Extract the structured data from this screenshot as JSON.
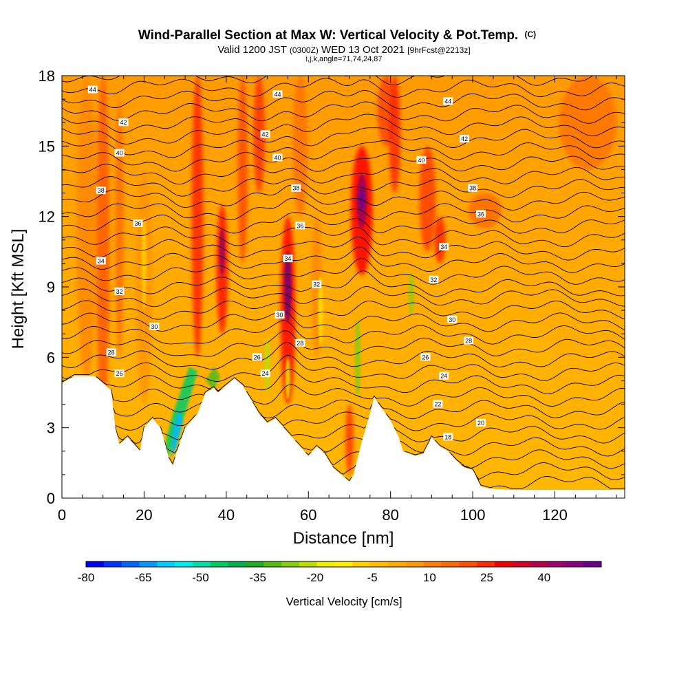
{
  "chart_data": {
    "type": "heatmap",
    "title": "Wind-Parallel Section at Max W: Vertical Velocity & Pot.Temp.",
    "title_mark": "(C)",
    "subtitle_parts": [
      "Valid 1200 JST",
      "(0300Z)",
      "WED 13 Oct 2021",
      "[9hrFcst@2213z]"
    ],
    "subtitle2": "i,j,k,angle=71,74,24,87",
    "xlabel": "Distance [nm]",
    "ylabel": "Height [Kft MSL]",
    "xlim": [
      0,
      137
    ],
    "ylim": [
      0,
      18
    ],
    "xticks": [
      0,
      20,
      40,
      60,
      80,
      100,
      120
    ],
    "xtick_labels": [
      "0",
      "20",
      "40",
      "60",
      "80",
      "100",
      "120"
    ],
    "yticks": [
      0,
      3,
      6,
      9,
      12,
      15,
      18
    ],
    "ytick_labels": [
      "0",
      "3",
      "6",
      "9",
      "12",
      "15",
      "18"
    ],
    "colorbar": {
      "label": "Vertical Velocity [cm/s]",
      "tick_labels": [
        "-80",
        "-65",
        "-50",
        "-35",
        "-20",
        "-5",
        "10",
        "25",
        "40"
      ],
      "tick_values": [
        -80,
        -65,
        -50,
        -35,
        -20,
        -5,
        10,
        25,
        40
      ],
      "colors": [
        "#0000ee",
        "#0033ff",
        "#0066ff",
        "#0099ff",
        "#00ccff",
        "#00eeee",
        "#00ddaa",
        "#00cc66",
        "#00b050",
        "#22aa22",
        "#55bb11",
        "#88cc11",
        "#bbdd00",
        "#eeee00",
        "#ffee00",
        "#ffd000",
        "#ffbb00",
        "#ffaa00",
        "#ff9900",
        "#ff8000",
        "#ff6a00",
        "#ff5000",
        "#ff2a00",
        "#ee0000",
        "#d4002a",
        "#b80050",
        "#a00070",
        "#880080",
        "#66008a"
      ]
    },
    "terrain": [
      [
        0,
        4.9
      ],
      [
        3,
        5.2
      ],
      [
        8,
        5.2
      ],
      [
        10,
        4.9
      ],
      [
        12,
        4.6
      ],
      [
        13,
        3.0
      ],
      [
        14,
        2.3
      ],
      [
        16,
        2.6
      ],
      [
        18,
        2.2
      ],
      [
        19,
        2.0
      ],
      [
        20,
        3.0
      ],
      [
        22,
        3.4
      ],
      [
        24,
        3.0
      ],
      [
        25,
        2.4
      ],
      [
        26,
        1.7
      ],
      [
        27,
        1.4
      ],
      [
        28,
        2.0
      ],
      [
        30,
        3.0
      ],
      [
        33,
        3.6
      ],
      [
        35,
        4.5
      ],
      [
        37,
        4.7
      ],
      [
        38,
        4.5
      ],
      [
        40,
        4.8
      ],
      [
        42,
        5.1
      ],
      [
        44,
        4.8
      ],
      [
        46,
        4.2
      ],
      [
        48,
        3.6
      ],
      [
        50,
        3.2
      ],
      [
        52,
        3.4
      ],
      [
        54,
        3.0
      ],
      [
        56,
        2.6
      ],
      [
        58,
        2.2
      ],
      [
        60,
        1.8
      ],
      [
        62,
        2.2
      ],
      [
        64,
        1.9
      ],
      [
        66,
        1.3
      ],
      [
        68,
        1.0
      ],
      [
        70,
        0.7
      ],
      [
        71,
        1.0
      ],
      [
        73,
        2.4
      ],
      [
        75,
        3.6
      ],
      [
        76,
        4.3
      ],
      [
        78,
        3.8
      ],
      [
        80,
        3.3
      ],
      [
        82,
        2.6
      ],
      [
        83,
        2.0
      ],
      [
        86,
        1.8
      ],
      [
        88,
        1.9
      ],
      [
        90,
        2.6
      ],
      [
        92,
        2.2
      ],
      [
        94,
        2.0
      ],
      [
        96,
        1.6
      ],
      [
        98,
        1.3
      ],
      [
        100,
        1.2
      ],
      [
        102,
        0.5
      ],
      [
        104,
        0.4
      ],
      [
        110,
        0.35
      ],
      [
        137,
        0.35
      ]
    ],
    "theta_contour_labels": [
      {
        "text": "44",
        "x": 7.5,
        "y": 17.4
      },
      {
        "text": "44",
        "x": 52.5,
        "y": 17.2
      },
      {
        "text": "44",
        "x": 94,
        "y": 16.9
      },
      {
        "text": "42",
        "x": 15,
        "y": 16.0
      },
      {
        "text": "42",
        "x": 49.5,
        "y": 15.5
      },
      {
        "text": "42",
        "x": 98,
        "y": 15.3
      },
      {
        "text": "40",
        "x": 14,
        "y": 14.7
      },
      {
        "text": "40",
        "x": 52.5,
        "y": 14.5
      },
      {
        "text": "40",
        "x": 87.5,
        "y": 14.4
      },
      {
        "text": "38",
        "x": 9.5,
        "y": 13.1
      },
      {
        "text": "38",
        "x": 57,
        "y": 13.2
      },
      {
        "text": "38",
        "x": 100,
        "y": 13.2
      },
      {
        "text": "36",
        "x": 18.5,
        "y": 11.7
      },
      {
        "text": "36",
        "x": 58,
        "y": 11.6
      },
      {
        "text": "36",
        "x": 102,
        "y": 12.1
      },
      {
        "text": "34",
        "x": 9.5,
        "y": 10.1
      },
      {
        "text": "34",
        "x": 55,
        "y": 10.2
      },
      {
        "text": "34",
        "x": 93,
        "y": 10.7
      },
      {
        "text": "32",
        "x": 14,
        "y": 8.8
      },
      {
        "text": "32",
        "x": 62,
        "y": 9.1
      },
      {
        "text": "32",
        "x": 90.5,
        "y": 9.3
      },
      {
        "text": "30",
        "x": 22.5,
        "y": 7.3
      },
      {
        "text": "30",
        "x": 53,
        "y": 7.8
      },
      {
        "text": "30",
        "x": 95,
        "y": 7.6
      },
      {
        "text": "28",
        "x": 12,
        "y": 6.2
      },
      {
        "text": "28",
        "x": 58,
        "y": 6.6
      },
      {
        "text": "28",
        "x": 99,
        "y": 6.7
      },
      {
        "text": "26",
        "x": 14,
        "y": 5.3
      },
      {
        "text": "26",
        "x": 47.5,
        "y": 6.0
      },
      {
        "text": "26",
        "x": 88.5,
        "y": 6.0
      },
      {
        "text": "24",
        "x": 49.5,
        "y": 5.3
      },
      {
        "text": "24",
        "x": 93,
        "y": 5.2
      },
      {
        "text": "22",
        "x": 91.5,
        "y": 4.0
      },
      {
        "text": "20",
        "x": 102,
        "y": 3.2
      },
      {
        "text": "18",
        "x": 94,
        "y": 2.6
      }
    ]
  }
}
